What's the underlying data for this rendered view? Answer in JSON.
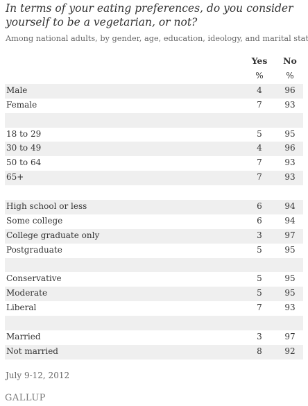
{
  "title": "In terms of your eating preferences, do you consider yourself to be a vegetarian, or not?",
  "subtitle": "Among national adults, by gender, age, education, ideology, and marital status",
  "columns": {
    "yes": "Yes",
    "no": "No",
    "unit": "%"
  },
  "footer": {
    "date": "July 9-12, 2012",
    "logo": "GALLUP"
  },
  "chart_data": {
    "type": "table",
    "title": "In terms of your eating preferences, do you consider yourself to be a vegetarian, or not?",
    "subtitle": "Among national adults, by gender, age, education, ideology, and marital status",
    "columns": [
      "Yes",
      "No"
    ],
    "unit": "%",
    "rows": [
      {
        "label": "",
        "yes": "%",
        "no": "%"
      },
      {
        "label": "Male",
        "yes": "4",
        "no": "96"
      },
      {
        "label": "Female",
        "yes": "7",
        "no": "93"
      },
      {
        "label": "",
        "yes": "",
        "no": ""
      },
      {
        "label": "18 to 29",
        "yes": "5",
        "no": "95"
      },
      {
        "label": "30 to 49",
        "yes": "4",
        "no": "96"
      },
      {
        "label": "50 to 64",
        "yes": "7",
        "no": "93"
      },
      {
        "label": "65+",
        "yes": "7",
        "no": "93"
      },
      {
        "label": "",
        "yes": "",
        "no": ""
      },
      {
        "label": "High school or less",
        "yes": "6",
        "no": "94"
      },
      {
        "label": "Some college",
        "yes": "6",
        "no": "94"
      },
      {
        "label": "College graduate only",
        "yes": "3",
        "no": "97"
      },
      {
        "label": "Postgraduate",
        "yes": "5",
        "no": "95"
      },
      {
        "label": "",
        "yes": "",
        "no": ""
      },
      {
        "label": "Conservative",
        "yes": "5",
        "no": "95"
      },
      {
        "label": "Moderate",
        "yes": "5",
        "no": "95"
      },
      {
        "label": "Liberal",
        "yes": "7",
        "no": "93"
      },
      {
        "label": "",
        "yes": "",
        "no": ""
      },
      {
        "label": "Married",
        "yes": "3",
        "no": "97"
      },
      {
        "label": "Not married",
        "yes": "8",
        "no": "92"
      }
    ]
  }
}
